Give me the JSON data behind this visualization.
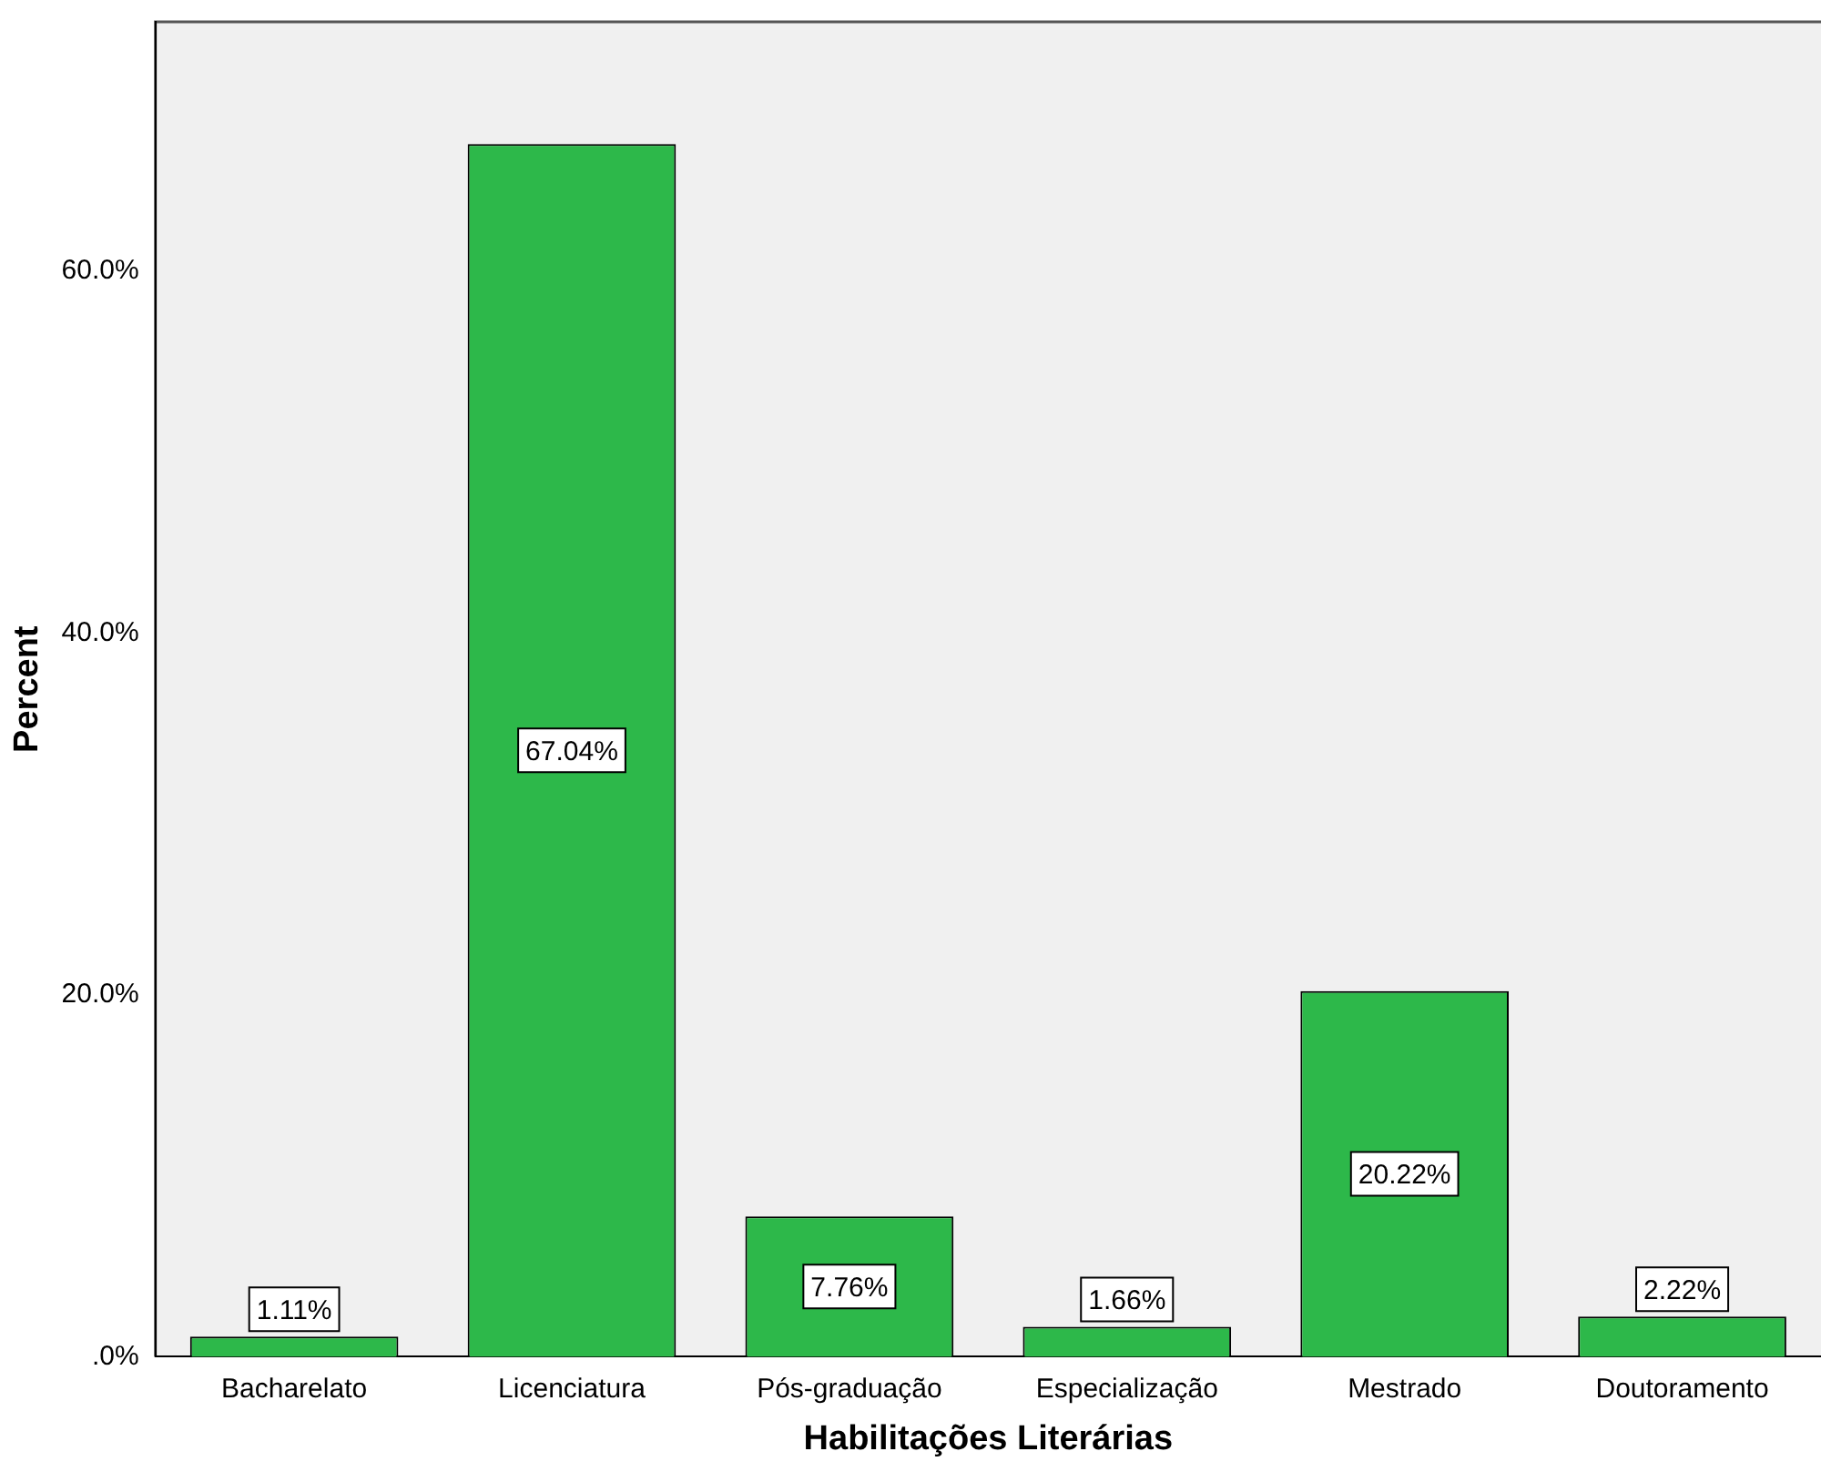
{
  "chart_data": {
    "type": "bar",
    "xlabel": "Habilitações Literárias",
    "ylabel": "Percent",
    "categories": [
      "Bacharelato",
      "Licenciatura",
      "Pós-graduação",
      "Especialização",
      "Mestrado",
      "Doutoramento"
    ],
    "values": [
      1.11,
      67.04,
      7.76,
      1.66,
      20.22,
      2.22
    ],
    "color": "#2db84a",
    "ylim": [
      0,
      73.8
    ],
    "yticks": [
      {
        "value": 0,
        "label": ".0%"
      },
      {
        "value": 20,
        "label": "20.0%"
      },
      {
        "value": 40,
        "label": "40.0%"
      },
      {
        "value": 60,
        "label": "60.0%"
      }
    ],
    "value_labels": [
      "1.11%",
      "67.04%",
      "7.76%",
      "1.66%",
      "20.22%",
      "2.22%"
    ],
    "grid": false,
    "legend": false
  }
}
